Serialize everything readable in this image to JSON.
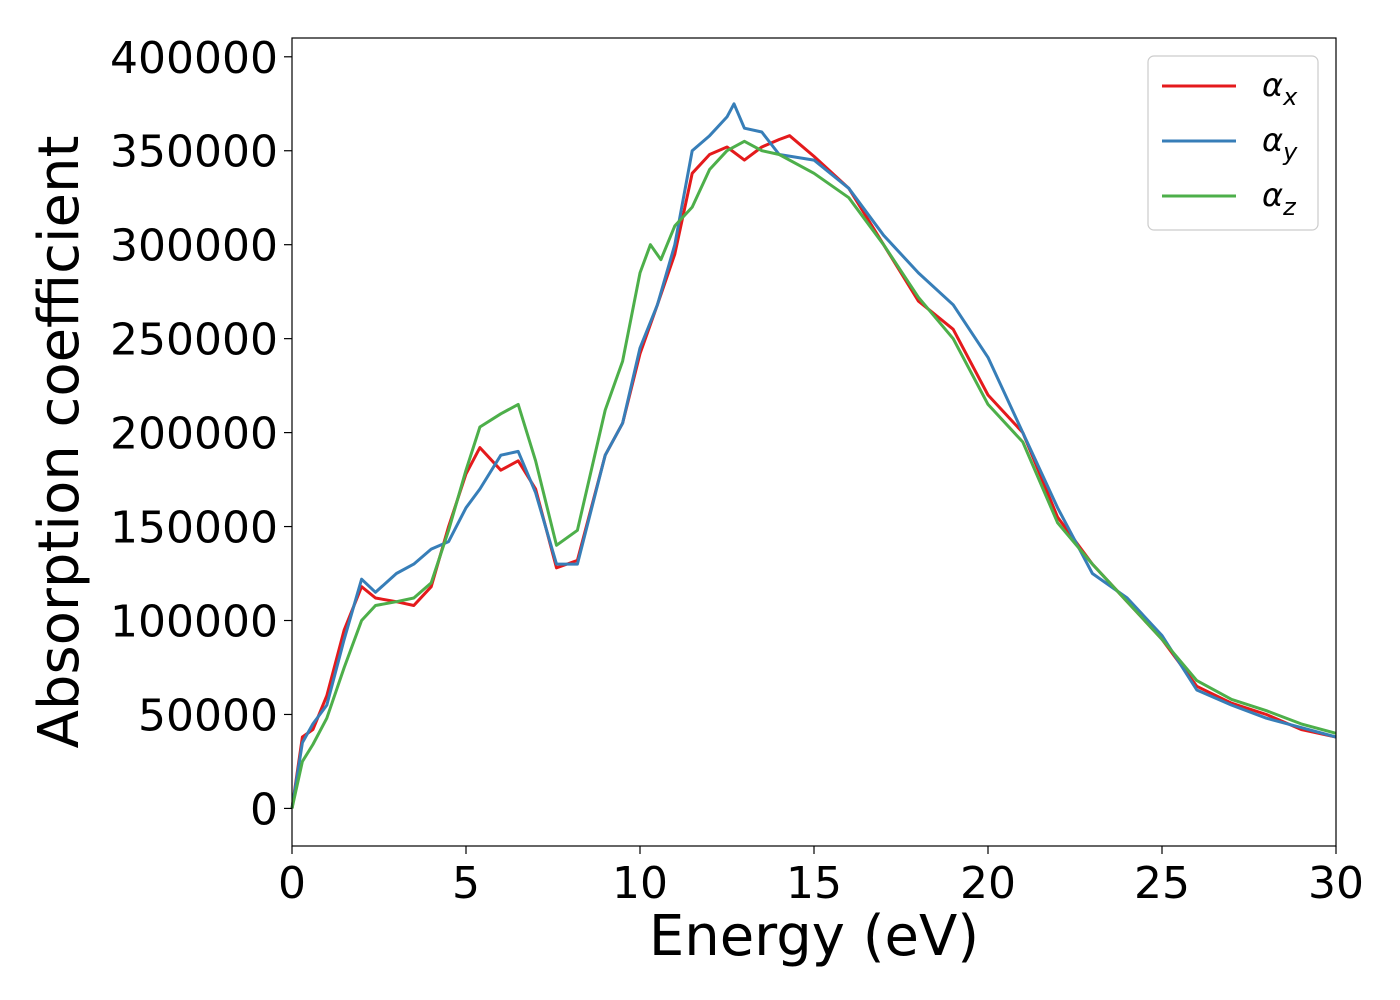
{
  "chart_data": {
    "type": "line",
    "title": "",
    "xlabel": "Energy (eV)",
    "ylabel": "Absorption coefficient",
    "xlim": [
      0,
      30
    ],
    "ylim": [
      -20000,
      410000
    ],
    "xticks": [
      0,
      5,
      10,
      15,
      20,
      25,
      30
    ],
    "yticks": [
      0,
      50000,
      100000,
      150000,
      200000,
      250000,
      300000,
      350000,
      400000
    ],
    "grid": false,
    "legend_position": "top-right",
    "series": [
      {
        "name": "α",
        "subscript": "x",
        "color": "#e41a1c",
        "x": [
          0,
          0.3,
          0.6,
          1,
          1.5,
          2,
          2.4,
          3,
          3.5,
          4,
          4.5,
          5,
          5.4,
          6,
          6.5,
          7,
          7.6,
          8.2,
          9,
          9.5,
          10,
          10.5,
          11,
          11.5,
          12,
          12.5,
          13,
          13.5,
          14,
          14.3,
          15,
          16,
          17,
          18,
          19,
          20,
          21,
          22,
          23,
          24,
          25,
          26,
          27,
          28,
          29,
          30
        ],
        "y": [
          0,
          38000,
          42000,
          60000,
          95000,
          118000,
          112000,
          110000,
          108000,
          118000,
          150000,
          178000,
          192000,
          180000,
          185000,
          170000,
          128000,
          132000,
          188000,
          205000,
          242000,
          268000,
          295000,
          338000,
          348000,
          352000,
          345000,
          352000,
          356000,
          358000,
          347000,
          330000,
          300000,
          270000,
          255000,
          220000,
          200000,
          155000,
          130000,
          110000,
          90000,
          65000,
          56000,
          50000,
          42000,
          38000
        ]
      },
      {
        "name": "α",
        "subscript": "y",
        "color": "#377eb8",
        "x": [
          0,
          0.3,
          0.6,
          1,
          1.5,
          2,
          2.4,
          3,
          3.5,
          4,
          4.5,
          5,
          5.4,
          6,
          6.5,
          7,
          7.6,
          8.2,
          9,
          9.5,
          10,
          10.5,
          11,
          11.5,
          12,
          12.5,
          12.7,
          13,
          13.5,
          14,
          15,
          16,
          17,
          18,
          19,
          20,
          21,
          22,
          23,
          24,
          25,
          26,
          27,
          28,
          29,
          30
        ],
        "y": [
          0,
          35000,
          45000,
          55000,
          90000,
          122000,
          115000,
          125000,
          130000,
          138000,
          142000,
          160000,
          170000,
          188000,
          190000,
          168000,
          130000,
          130000,
          188000,
          205000,
          245000,
          268000,
          300000,
          350000,
          358000,
          368000,
          375000,
          362000,
          360000,
          348000,
          345000,
          330000,
          305000,
          285000,
          268000,
          240000,
          200000,
          160000,
          125000,
          112000,
          92000,
          63000,
          55000,
          48000,
          43000,
          38000
        ]
      },
      {
        "name": "α",
        "subscript": "z",
        "color": "#4daf4a",
        "x": [
          0,
          0.3,
          0.6,
          1,
          1.5,
          2,
          2.4,
          3,
          3.5,
          4,
          4.5,
          5,
          5.4,
          6,
          6.5,
          7,
          7.6,
          8.2,
          9,
          9.5,
          10,
          10.3,
          10.6,
          11,
          11.5,
          12,
          12.5,
          13,
          13.5,
          14,
          15,
          16,
          17,
          18,
          19,
          20,
          21,
          22,
          23,
          24,
          25,
          26,
          27,
          28,
          29,
          30
        ],
        "y": [
          0,
          25000,
          34000,
          48000,
          75000,
          100000,
          108000,
          110000,
          112000,
          120000,
          148000,
          180000,
          203000,
          210000,
          215000,
          185000,
          140000,
          148000,
          212000,
          238000,
          285000,
          300000,
          292000,
          310000,
          320000,
          340000,
          350000,
          355000,
          350000,
          348000,
          338000,
          325000,
          300000,
          272000,
          250000,
          215000,
          195000,
          152000,
          130000,
          110000,
          90000,
          68000,
          58000,
          52000,
          45000,
          40000
        ]
      }
    ]
  }
}
